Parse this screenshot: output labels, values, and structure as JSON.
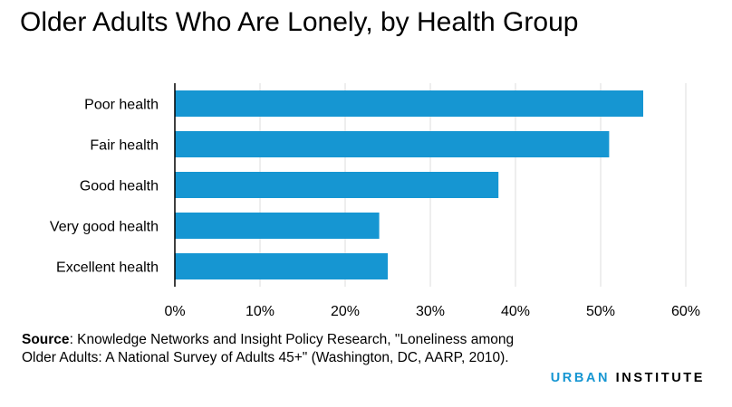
{
  "chart_data": {
    "type": "bar",
    "orientation": "horizontal",
    "title": "Older Adults Who Are Lonely, by Health Group",
    "categories": [
      "Poor health",
      "Fair health",
      "Good health",
      "Very good health",
      "Excellent health"
    ],
    "values": [
      55,
      51,
      38,
      24,
      25
    ],
    "xlabel": "",
    "ylabel": "",
    "xlim": [
      0,
      60
    ],
    "xticks": [
      0,
      10,
      20,
      30,
      40,
      50,
      60
    ],
    "tick_labels": [
      "0%",
      "10%",
      "20%",
      "30%",
      "40%",
      "50%",
      "60%"
    ],
    "value_suffix": "%",
    "grid": "vertical",
    "bar_color": "#1696d2",
    "grid_color": "#dedddd"
  },
  "source": {
    "label": "Source",
    "text": ": Knowledge Networks and Insight Policy Research, \"Loneliness among Older Adults: A National Survey of Adults 45+\" (Washington, DC, AARP, 2010)."
  },
  "brand": {
    "part1": "URBAN",
    "part2": " INSTITUTE",
    "color_primary": "#1696d2"
  }
}
